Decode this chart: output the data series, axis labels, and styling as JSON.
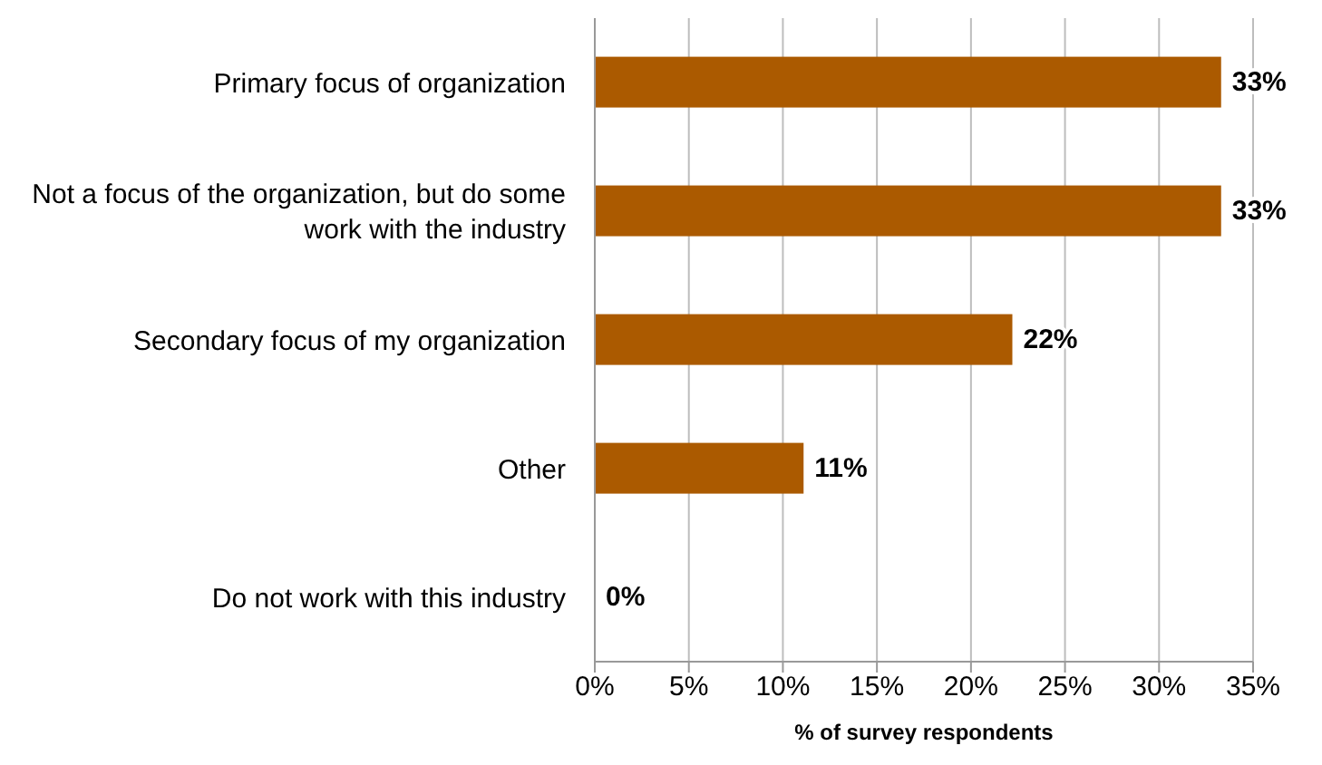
{
  "chart_data": {
    "type": "bar",
    "orientation": "horizontal",
    "categories": [
      "Primary focus of organization",
      "Not a focus of the organization, but do some work with the industry",
      "Secondary focus of my organization",
      "Other",
      "Do not work with this industry"
    ],
    "values": [
      33.3,
      33.3,
      22.2,
      11.1,
      0
    ],
    "value_labels": [
      "33%",
      "33%",
      "22%",
      "11%",
      "0%"
    ],
    "color": "#ab5a00",
    "xlabel": "% of survey respondents",
    "xlim": [
      0,
      35
    ],
    "xticks": [
      {
        "value": 0,
        "label": "0%"
      },
      {
        "value": 5,
        "label": "5%"
      },
      {
        "value": 10,
        "label": "10%"
      },
      {
        "value": 15,
        "label": "15%"
      },
      {
        "value": 20,
        "label": "20%"
      },
      {
        "value": 25,
        "label": "25%"
      },
      {
        "value": 30,
        "label": "30%"
      },
      {
        "value": 35,
        "label": "35%"
      }
    ],
    "grid": "x"
  }
}
